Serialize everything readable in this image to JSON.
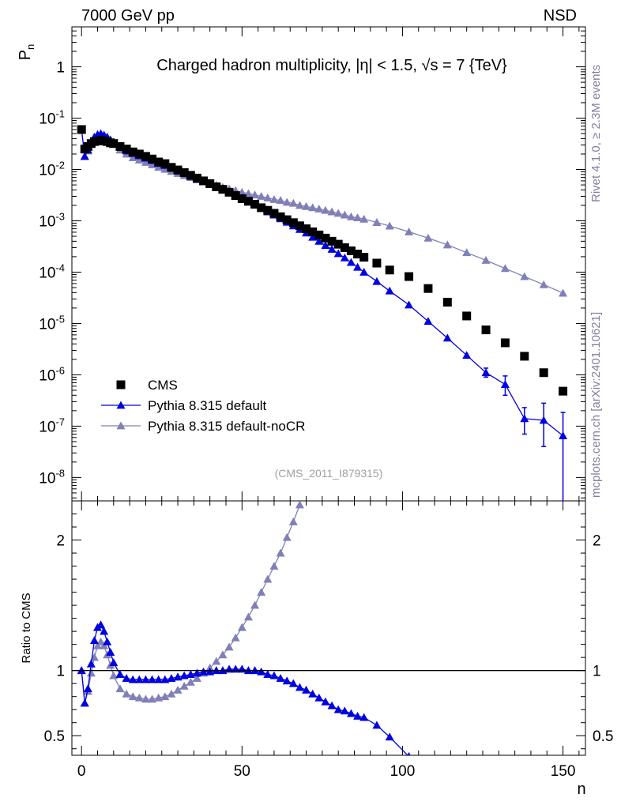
{
  "header": {
    "left": "7000 GeV pp",
    "right": "NSD"
  },
  "side_labels": {
    "rivet": "Rivet 4.1.0, ≥ 2.3M events",
    "mcplots": "mcplots.cern.ch [arXiv:2401.10621]"
  },
  "colors": {
    "cms": "#000000",
    "default": "#0000e0",
    "nocr": "#8080b8",
    "ref_line": "#000000"
  },
  "chart_data": [
    {
      "type": "scatter",
      "title": "Charged hadron multiplicity, |η| < 1.5, √s = 7 {TeV}",
      "ylabel": "P_n",
      "xlabel": "",
      "yscale": "log",
      "xlim": [
        -3,
        157
      ],
      "ylim": [
        3.5e-09,
        6
      ],
      "y_tick_labels": [
        "1",
        "10^-1",
        "10^-2",
        "10^-3",
        "10^-4",
        "10^-5",
        "10^-6",
        "10^-7",
        "10^-8"
      ],
      "analysis_label": "(CMS_2011_I879315)",
      "legend": {
        "position": "bottom-left",
        "entries": [
          "CMS",
          "Pythia 8.315 default",
          "Pythia 8.315 default-noCR"
        ]
      },
      "series": [
        {
          "name": "CMS",
          "marker": "square",
          "x": [
            0,
            1,
            2,
            3,
            4,
            5,
            6,
            7,
            8,
            9,
            10,
            12,
            14,
            16,
            18,
            20,
            22,
            24,
            26,
            28,
            30,
            32,
            34,
            36,
            38,
            40,
            42,
            44,
            46,
            48,
            50,
            52,
            54,
            56,
            58,
            60,
            62,
            64,
            66,
            68,
            70,
            72,
            74,
            76,
            78,
            80,
            82,
            84,
            86,
            88,
            92,
            96,
            102,
            108,
            114,
            120,
            126,
            132,
            138,
            144,
            150
          ],
          "y": [
            0.06,
            0.025,
            0.028,
            0.032,
            0.035,
            0.036,
            0.037,
            0.036,
            0.035,
            0.033,
            0.032,
            0.028,
            0.025,
            0.022,
            0.02,
            0.018,
            0.016,
            0.014,
            0.013,
            0.011,
            0.0098,
            0.0087,
            0.0077,
            0.0068,
            0.006,
            0.0053,
            0.0046,
            0.0041,
            0.0036,
            0.0031,
            0.0027,
            0.0024,
            0.0021,
            0.0018,
            0.0016,
            0.0014,
            0.0012,
            0.00105,
            0.00092,
            0.0008,
            0.0007,
            0.00061,
            0.00053,
            0.00046,
            0.0004,
            0.00035,
            0.0003,
            0.00026,
            0.000225,
            0.000195,
            0.00015,
            0.00011,
            8.2e-05,
            4.8e-05,
            2.6e-05,
            1.4e-05,
            7.5e-06,
            4.2e-06,
            2.3e-06,
            1.1e-06,
            4.8e-07
          ]
        },
        {
          "name": "Pythia 8.315 default",
          "marker": "triangle",
          "line": true,
          "x": [
            0,
            1,
            2,
            3,
            4,
            5,
            6,
            7,
            8,
            9,
            10,
            12,
            14,
            16,
            18,
            20,
            22,
            24,
            26,
            28,
            30,
            32,
            34,
            36,
            38,
            40,
            42,
            44,
            46,
            48,
            50,
            52,
            54,
            56,
            58,
            60,
            62,
            64,
            66,
            68,
            70,
            72,
            74,
            76,
            78,
            80,
            82,
            84,
            86,
            88,
            92,
            96,
            102,
            108,
            114,
            120,
            126,
            132,
            138,
            144,
            150
          ],
          "y": [
            0.06,
            0.018,
            0.024,
            0.034,
            0.043,
            0.048,
            0.05,
            0.047,
            0.043,
            0.038,
            0.034,
            0.027,
            0.023,
            0.0205,
            0.0185,
            0.0167,
            0.015,
            0.0132,
            0.012,
            0.0105,
            0.0093,
            0.0083,
            0.0073,
            0.0065,
            0.0058,
            0.0052,
            0.0046,
            0.0041,
            0.0037,
            0.0032,
            0.0028,
            0.0024,
            0.0021,
            0.0018,
            0.0015,
            0.0013,
            0.0011,
            0.00094,
            0.0008,
            0.00068,
            0.00058,
            0.00048,
            0.0004,
            0.00033,
            0.00028,
            0.00023,
            0.00019,
            0.000155,
            0.000125,
            0.0001,
            6.6e-05,
            4.3e-05,
            2.3e-05,
            1.1e-05,
            5.2e-06,
            2.4e-06,
            1.1e-06,
            6.5e-07,
            1.4e-07,
            1.3e-07,
            6.5e-08
          ],
          "err_lo": [
            0,
            0,
            0,
            0,
            0,
            0,
            0,
            0,
            0,
            0,
            0,
            0,
            0,
            0,
            0,
            0,
            0,
            0,
            0,
            0,
            0,
            0,
            0,
            0,
            0,
            0,
            0,
            0,
            0,
            0,
            0,
            0,
            0,
            0,
            0,
            0,
            0,
            0,
            0,
            0,
            0,
            0,
            0,
            0,
            0,
            0,
            0,
            0,
            0,
            0,
            0,
            0,
            0,
            0,
            0,
            0,
            2e-07,
            2.5e-07,
            7e-08,
            9e-08,
            6.3e-08
          ],
          "err_hi": [
            0,
            0,
            0,
            0,
            0,
            0,
            0,
            0,
            0,
            0,
            0,
            0,
            0,
            0,
            0,
            0,
            0,
            0,
            0,
            0,
            0,
            0,
            0,
            0,
            0,
            0,
            0,
            0,
            0,
            0,
            0,
            0,
            0,
            0,
            0,
            0,
            0,
            0,
            0,
            0,
            0,
            0,
            0,
            0,
            0,
            0,
            0,
            0,
            0,
            0,
            0,
            0,
            0,
            0,
            0,
            0,
            2.5e-07,
            3e-07,
            9e-08,
            1.5e-07,
            1.2e-07
          ]
        },
        {
          "name": "Pythia 8.315 default-noCR",
          "marker": "triangle",
          "line": true,
          "x": [
            0,
            1,
            2,
            3,
            4,
            5,
            6,
            7,
            8,
            9,
            10,
            12,
            14,
            16,
            18,
            20,
            22,
            24,
            26,
            28,
            30,
            32,
            34,
            36,
            38,
            40,
            42,
            44,
            46,
            48,
            50,
            52,
            54,
            56,
            58,
            60,
            62,
            64,
            66,
            68,
            70,
            72,
            74,
            76,
            78,
            80,
            82,
            84,
            86,
            88,
            92,
            96,
            102,
            108,
            114,
            120,
            126,
            132,
            138,
            144,
            150
          ],
          "y": [
            0.06,
            0.018,
            0.023,
            0.031,
            0.038,
            0.043,
            0.045,
            0.043,
            0.039,
            0.035,
            0.031,
            0.024,
            0.02,
            0.017,
            0.0153,
            0.0138,
            0.0124,
            0.0111,
            0.0101,
            0.0092,
            0.0084,
            0.0076,
            0.007,
            0.0063,
            0.0058,
            0.0053,
            0.0049,
            0.0045,
            0.0042,
            0.0039,
            0.0036,
            0.0034,
            0.0032,
            0.003,
            0.0028,
            0.0026,
            0.0025,
            0.0023,
            0.0022,
            0.002,
            0.0019,
            0.0018,
            0.0017,
            0.0016,
            0.0015,
            0.0014,
            0.0013,
            0.0012,
            0.00115,
            0.00108,
            0.00093,
            0.00079,
            0.00061,
            0.00046,
            0.00034,
            0.00024,
            0.00017,
            0.000118,
            8.2e-05,
            5.7e-05,
            3.9e-05
          ]
        }
      ]
    },
    {
      "type": "scatter",
      "title": "",
      "ylabel": "Ratio to CMS",
      "xlabel": "n",
      "xlim": [
        -3,
        157
      ],
      "ylim": [
        0.35,
        2.3
      ],
      "y_tick_labels": [
        "0.5",
        "1",
        "2"
      ],
      "x_tick_labels": [
        "0",
        "50",
        "100",
        "150"
      ],
      "ref_line": 1,
      "series": [
        {
          "name": "Pythia 8.315 default",
          "marker": "triangle",
          "line": true,
          "x": [
            0,
            1,
            2,
            3,
            4,
            5,
            6,
            7,
            8,
            9,
            10,
            12,
            14,
            16,
            18,
            20,
            22,
            24,
            26,
            28,
            30,
            32,
            34,
            36,
            38,
            40,
            42,
            44,
            46,
            48,
            50,
            52,
            54,
            56,
            58,
            60,
            62,
            64,
            66,
            68,
            70,
            72,
            74,
            76,
            78,
            80,
            82,
            84,
            86,
            88,
            92,
            96,
            102
          ],
          "y": [
            1.0,
            0.75,
            0.86,
            1.05,
            1.23,
            1.33,
            1.35,
            1.3,
            1.22,
            1.14,
            1.06,
            0.97,
            0.94,
            0.93,
            0.93,
            0.93,
            0.93,
            0.93,
            0.93,
            0.94,
            0.95,
            0.96,
            0.97,
            0.98,
            0.99,
            0.99,
            1.0,
            1.0,
            1.01,
            1.01,
            1.01,
            1.0,
            1.0,
            0.99,
            0.97,
            0.96,
            0.94,
            0.92,
            0.9,
            0.87,
            0.85,
            0.82,
            0.79,
            0.76,
            0.73,
            0.7,
            0.69,
            0.67,
            0.65,
            0.64,
            0.58,
            0.49,
            0.34
          ],
          "err_lo": [
            0,
            0,
            0,
            0,
            0,
            0,
            0,
            0,
            0,
            0,
            0,
            0,
            0,
            0,
            0,
            0,
            0,
            0,
            0,
            0,
            0,
            0,
            0,
            0,
            0,
            0,
            0,
            0,
            0,
            0,
            0,
            0,
            0,
            0,
            0,
            0,
            0,
            0,
            0,
            0,
            0,
            0,
            0,
            0,
            0,
            0,
            0,
            0,
            0,
            0,
            0.015,
            0.02,
            0.03
          ],
          "err_hi": [
            0,
            0,
            0,
            0,
            0,
            0,
            0,
            0,
            0,
            0,
            0,
            0,
            0,
            0,
            0,
            0,
            0,
            0,
            0,
            0,
            0,
            0,
            0,
            0,
            0,
            0,
            0,
            0,
            0,
            0,
            0,
            0,
            0,
            0,
            0,
            0,
            0,
            0,
            0,
            0,
            0,
            0,
            0,
            0,
            0,
            0,
            0,
            0,
            0,
            0,
            0.015,
            0.02,
            0.03
          ]
        },
        {
          "name": "Pythia 8.315 default-noCR",
          "marker": "triangle",
          "line": true,
          "x": [
            0,
            1,
            2,
            3,
            4,
            5,
            6,
            7,
            8,
            9,
            10,
            12,
            14,
            16,
            18,
            20,
            22,
            24,
            26,
            28,
            30,
            32,
            34,
            36,
            38,
            40,
            42,
            44,
            46,
            48,
            50,
            52,
            54,
            56,
            58,
            60,
            62,
            64,
            66,
            68
          ],
          "y": [
            1.0,
            0.75,
            0.84,
            0.98,
            1.1,
            1.19,
            1.22,
            1.19,
            1.12,
            1.04,
            0.96,
            0.86,
            0.82,
            0.8,
            0.79,
            0.78,
            0.78,
            0.79,
            0.8,
            0.82,
            0.85,
            0.88,
            0.91,
            0.94,
            0.98,
            1.02,
            1.07,
            1.12,
            1.18,
            1.25,
            1.33,
            1.41,
            1.5,
            1.6,
            1.7,
            1.8,
            1.9,
            2.02,
            2.14,
            2.27
          ]
        }
      ]
    }
  ]
}
